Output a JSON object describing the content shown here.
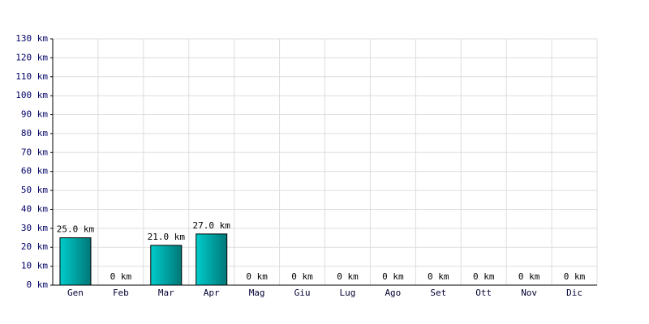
{
  "chart_data": {
    "type": "bar",
    "categories": [
      "Gen",
      "Feb",
      "Mar",
      "Apr",
      "Mag",
      "Giu",
      "Lug",
      "Ago",
      "Set",
      "Ott",
      "Nov",
      "Dic"
    ],
    "values": [
      25,
      0,
      21,
      27,
      0,
      0,
      0,
      0,
      0,
      0,
      0,
      0
    ],
    "value_labels": [
      "25.0 km",
      "0 km",
      "21.0 km",
      "27.0 km",
      "0 km",
      "0 km",
      "0 km",
      "0 km",
      "0 km",
      "0 km",
      "0 km",
      "0 km"
    ],
    "color": "#00cccc",
    "ylim": [
      0,
      130
    ],
    "yticks": [
      {
        "value": 0,
        "label": "0 km"
      },
      {
        "value": 10,
        "label": "10 km"
      },
      {
        "value": 20,
        "label": "20 km"
      },
      {
        "value": 30,
        "label": "30 km"
      },
      {
        "value": 40,
        "label": "40 km"
      },
      {
        "value": 50,
        "label": "50 km"
      },
      {
        "value": 60,
        "label": "60 km"
      },
      {
        "value": 70,
        "label": "70 km"
      },
      {
        "value": 80,
        "label": "80 km"
      },
      {
        "value": 90,
        "label": "90 km"
      },
      {
        "value": 100,
        "label": "100 km"
      },
      {
        "value": 110,
        "label": "110 km"
      },
      {
        "value": 120,
        "label": "120 km"
      },
      {
        "value": 130,
        "label": "130 km"
      }
    ],
    "grid": true
  }
}
